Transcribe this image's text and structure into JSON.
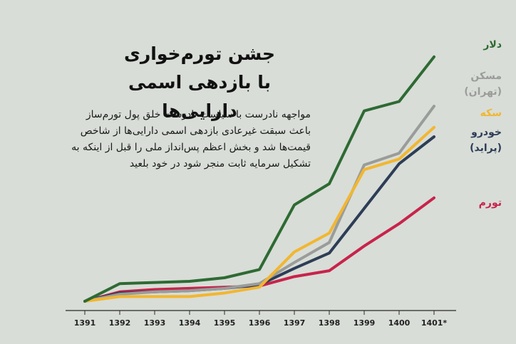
{
  "chart_data": {
    "type": "line",
    "title_line1": "جشن تورم‌خواری",
    "title_line2": "با بازدهی اسمی دارایی‌ها",
    "subtitle": "مواجهه نادرست با سیاست نادرست خلق پول تورم‌ساز باعث سبقت غیرعادی بازدهی اسمی دارایی‌ها از شاخص قیمت‌ها شد و بخش اعظم پس‌انداز ملی را قبل از اینکه به تشکیل سرمایه ثابت منجر شود در خود بلعید",
    "x": [
      "1391",
      "1392",
      "1393",
      "1394",
      "1395",
      "1396",
      "1397",
      "1398",
      "1399",
      "1400",
      "1401*"
    ],
    "ylim": [
      0,
      100
    ],
    "grid": false,
    "legend_placement": "right",
    "series": [
      {
        "name": "دلار",
        "color": "#2e6a33",
        "values": [
          0,
          7.5,
          8,
          8.5,
          10,
          13.5,
          41,
          50,
          81,
          85,
          104
        ]
      },
      {
        "name": "مسکن (تهران)",
        "color": "#9a9c99",
        "values": [
          0,
          3,
          4,
          4.5,
          5.5,
          7.5,
          16.5,
          25,
          58,
          63,
          83
        ]
      },
      {
        "name": "سکه",
        "color": "#f2b630",
        "values": [
          0,
          2,
          2,
          2,
          3.5,
          6,
          21,
          29,
          56,
          60.5,
          74
        ]
      },
      {
        "name": "خودرو (پراید)",
        "color": "#2d3d57",
        "values": [
          0,
          3.5,
          4,
          4.5,
          5.5,
          7,
          14,
          20.5,
          39.5,
          58.5,
          70
        ]
      },
      {
        "name": "تورم",
        "color": "#c8234b",
        "values": [
          0,
          4,
          5,
          5.5,
          6,
          6.5,
          10.5,
          13,
          23.5,
          33,
          44
        ]
      }
    ]
  }
}
